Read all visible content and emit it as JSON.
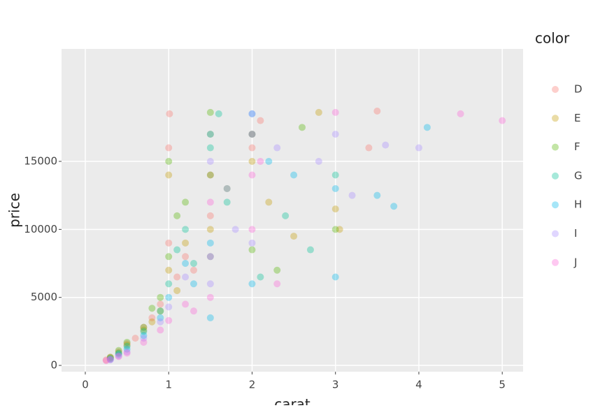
{
  "chart_data": {
    "type": "scatter",
    "x_label": "carat",
    "y_label": "price",
    "legend_title": "color",
    "xlim": [
      -0.285,
      5.25
    ],
    "ylim": [
      -460,
      23270
    ],
    "xticks": [
      0,
      1,
      2,
      3,
      4,
      5
    ],
    "yticks": [
      0,
      5000,
      10000,
      15000
    ],
    "grid": true,
    "legend_position": "right",
    "opacity": 0.35,
    "series": [
      {
        "name": "D",
        "color": "#F8766D",
        "x": [
          0.3,
          0.4,
          0.5,
          0.7,
          0.9,
          1.0,
          1.0,
          1.01,
          1.1,
          1.2,
          1.5,
          1.5,
          2.0,
          2.1,
          3.4,
          3.5,
          0.25,
          0.6,
          0.8,
          1.3
        ],
        "values": [
          600,
          1000,
          1600,
          2800,
          4500,
          9000,
          16000,
          18500,
          6500,
          8000,
          11000,
          14000,
          16000,
          18000,
          16000,
          18700,
          400,
          2000,
          3500,
          7000
        ]
      },
      {
        "name": "E",
        "color": "#C49A00",
        "x": [
          0.3,
          0.5,
          0.7,
          0.9,
          1.0,
          1.0,
          1.2,
          1.5,
          1.5,
          2.0,
          2.2,
          2.5,
          2.8,
          3.0,
          0.4,
          0.8,
          1.1,
          3.05
        ],
        "values": [
          550,
          1500,
          2600,
          4000,
          7000,
          14000,
          9000,
          10000,
          17000,
          15000,
          12000,
          9500,
          18600,
          11500,
          900,
          3200,
          5500,
          10000
        ]
      },
      {
        "name": "F",
        "color": "#53B400",
        "x": [
          0.3,
          0.5,
          0.7,
          0.9,
          1.0,
          1.0,
          1.1,
          1.2,
          1.5,
          1.5,
          1.7,
          2.0,
          2.0,
          2.3,
          2.6,
          3.0,
          0.4,
          0.8
        ],
        "values": [
          600,
          1700,
          2800,
          5000,
          8000,
          15000,
          11000,
          12000,
          14000,
          18600,
          13000,
          17000,
          8500,
          7000,
          17500,
          10000,
          1100,
          4200
        ]
      },
      {
        "name": "G",
        "color": "#00C094",
        "x": [
          0.3,
          0.5,
          0.7,
          0.9,
          1.0,
          1.1,
          1.2,
          1.5,
          1.5,
          1.6,
          1.7,
          2.0,
          2.1,
          2.4,
          2.7,
          3.0,
          0.4,
          1.3
        ],
        "values": [
          500,
          1400,
          2500,
          4000,
          6000,
          8500,
          10000,
          8000,
          16000,
          18500,
          12000,
          17000,
          6500,
          11000,
          8500,
          14000,
          900,
          7500
        ]
      },
      {
        "name": "H",
        "color": "#00B6EB",
        "x": [
          0.3,
          0.5,
          0.7,
          0.9,
          1.0,
          1.2,
          1.5,
          1.5,
          1.5,
          2.0,
          2.0,
          2.2,
          2.5,
          3.0,
          3.0,
          3.5,
          3.7,
          4.1,
          0.4,
          1.3
        ],
        "values": [
          450,
          1200,
          2200,
          3500,
          5000,
          7500,
          3500,
          9000,
          17000,
          6000,
          18500,
          15000,
          14000,
          6500,
          13000,
          12500,
          11700,
          17500,
          800,
          6000
        ]
      },
      {
        "name": "I",
        "color": "#A58AFF",
        "x": [
          0.3,
          0.5,
          0.7,
          0.9,
          1.0,
          1.2,
          1.5,
          1.5,
          1.7,
          2.0,
          2.0,
          2.3,
          2.8,
          3.0,
          3.6,
          4.0,
          0.4,
          1.8,
          3.2
        ],
        "values": [
          400,
          1000,
          2000,
          3200,
          4300,
          6500,
          6000,
          15000,
          13000,
          9000,
          18500,
          16000,
          15000,
          17000,
          16200,
          16000,
          700,
          10000,
          12500
        ]
      },
      {
        "name": "J",
        "color": "#FB61D7",
        "x": [
          0.25,
          0.3,
          0.5,
          0.7,
          0.9,
          1.0,
          1.2,
          1.5,
          1.5,
          1.5,
          2.0,
          2.0,
          2.0,
          2.1,
          2.3,
          3.0,
          4.5,
          5.0,
          0.4,
          1.3
        ],
        "values": [
          350,
          450,
          900,
          1700,
          2600,
          3300,
          4500,
          5000,
          8000,
          12000,
          10000,
          14000,
          17000,
          15000,
          6000,
          18600,
          18500,
          18000,
          650,
          4000
        ]
      }
    ]
  }
}
